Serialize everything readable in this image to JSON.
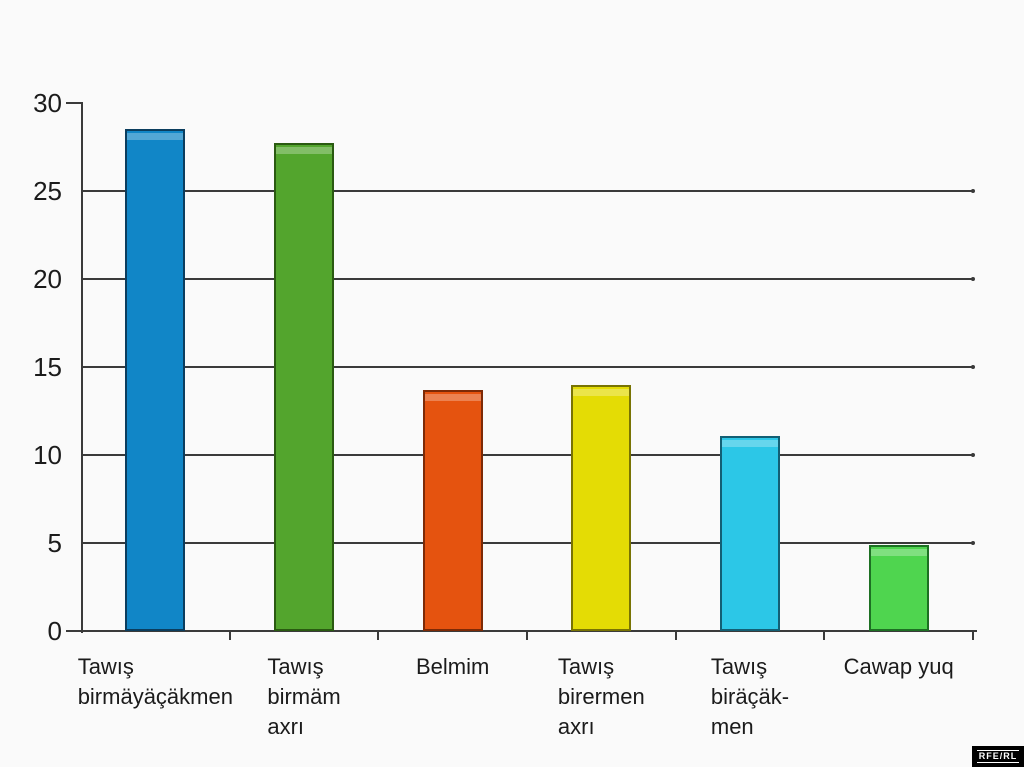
{
  "page": {
    "background": "#fafafa"
  },
  "chart_data": {
    "type": "bar",
    "title": "",
    "xlabel": "",
    "ylabel": "",
    "categories": [
      "Tawış birmäyäçäkmen",
      "Tawış birmäm axrı",
      "Belmim",
      "Tawış birermen axrı",
      "Tawış biräçäk-men",
      "Cawap yuq"
    ],
    "category_lines": [
      "Tawış\nbirmäyäçäkmen",
      "Tawış\nbirmäm\naxrı",
      "Belmim",
      "Tawış\nbirermen\naxrı",
      "Tawış\nbiräçäk-\nmen",
      "Cawap yuq"
    ],
    "values": [
      28.5,
      27.7,
      13.7,
      14.0,
      11.1,
      4.9
    ],
    "bar_colors": [
      "#1186c7",
      "#53a52d",
      "#e5530f",
      "#e4dc05",
      "#2cc7e7",
      "#4fd54f"
    ],
    "bar_border_colors": [
      "#0b3d5e",
      "#2a5a11",
      "#7d2a06",
      "#787303",
      "#135f74",
      "#1d7023"
    ],
    "ylim": [
      0,
      30
    ],
    "yticks": [
      0,
      5,
      10,
      15,
      20,
      25,
      30
    ],
    "grid": true,
    "legend": "none",
    "axis_color": "#3a3a3a",
    "text_color": "#1b1b1b"
  },
  "branding": {
    "logo_label": "RFE/RL",
    "logo_bg": "#000000",
    "logo_text_color": "#ffffff"
  }
}
